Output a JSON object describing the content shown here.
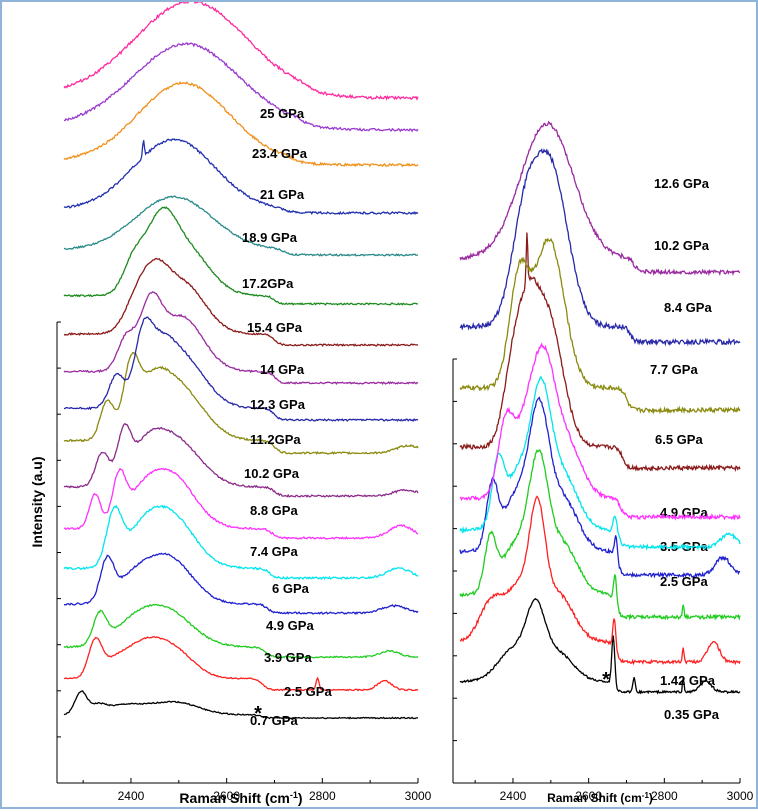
{
  "chart_data": [
    {
      "type": "line",
      "panel": "left",
      "xlabel": "Raman Shift (cm",
      "xlabel_sup": "-1",
      "xlabel_end": ")",
      "ylabel": "Intensity (a.u)",
      "xlim": [
        2260,
        3000
      ],
      "xticks": [
        2400,
        2600,
        2800,
        3000
      ],
      "y_axis_ticks": 10,
      "annotation": "*",
      "series": [
        {
          "name": "0.7 GPa",
          "color": "#000000",
          "peaks": [
            [
              2295,
              0.55,
              12
            ],
            [
              2330,
              0.22,
              18
            ],
            [
              2380,
              0.15,
              30
            ],
            [
              2460,
              0.25,
              60
            ],
            [
              2510,
              0.12,
              40
            ]
          ],
          "edge": 2672,
          "level": 0.08
        },
        {
          "name": "2.5 GPa",
          "color": "#ff2020",
          "peaks": [
            [
              2325,
              0.75,
              14
            ],
            [
              2360,
              0.25,
              25
            ],
            [
              2410,
              0.35,
              35
            ],
            [
              2450,
              0.55,
              45
            ],
            [
              2500,
              0.35,
              40
            ]
          ],
          "edge": 2675,
          "level": 0.25,
          "tail": [
            [
              2790,
              0.25,
              3
            ],
            [
              2930,
              0.2,
              15
            ]
          ]
        },
        {
          "name": "3.9 GPa",
          "color": "#20cc20",
          "peaks": [
            [
              2335,
              0.6,
              14
            ],
            [
              2400,
              0.3,
              40
            ],
            [
              2470,
              0.75,
              55
            ]
          ],
          "edge": 2680,
          "level": 0.2,
          "tail": [
            [
              2940,
              0.12,
              20
            ]
          ]
        },
        {
          "name": "4.9 GPa",
          "color": "#2020d0",
          "peaks": [
            [
              2350,
              0.65,
              14
            ],
            [
              2400,
              0.3,
              35
            ],
            [
              2475,
              0.8,
              50
            ]
          ],
          "edge": 2685,
          "level": 0.15,
          "tail": [
            [
              2950,
              0.12,
              25
            ]
          ]
        },
        {
          "name": "6 GPa",
          "color": "#00e5ee",
          "peaks": [
            [
              2365,
              0.8,
              16
            ],
            [
              2420,
              0.35,
              35
            ],
            [
              2480,
              0.85,
              50
            ]
          ],
          "edge": 2690,
          "level": 0.15,
          "tail": [
            [
              2960,
              0.15,
              25
            ]
          ]
        },
        {
          "name": "7.4 GPa",
          "color": "#ff30ff",
          "peaks": [
            [
              2325,
              0.55,
              12
            ],
            [
              2375,
              0.75,
              14
            ],
            [
              2420,
              0.3,
              30
            ],
            [
              2480,
              0.9,
              50
            ]
          ],
          "edge": 2695,
          "level": 0.15,
          "tail": [
            [
              2965,
              0.2,
              25
            ]
          ]
        },
        {
          "name": "8.8 GPa",
          "color": "#8a2a8a",
          "peaks": [
            [
              2340,
              0.55,
              14
            ],
            [
              2385,
              0.75,
              14
            ],
            [
              2430,
              0.35,
              30
            ],
            [
              2485,
              0.85,
              55
            ]
          ],
          "edge": 2700,
          "level": 0.15,
          "tail": [
            [
              2975,
              0.1,
              25
            ]
          ]
        },
        {
          "name": "10.2 GPa",
          "color": "#8a8a10",
          "peaks": [
            [
              2350,
              0.6,
              14
            ],
            [
              2400,
              0.95,
              16
            ],
            [
              2440,
              0.45,
              30
            ],
            [
              2490,
              0.95,
              55
            ]
          ],
          "edge": 2700,
          "level": 0.2,
          "tail": [
            [
              2980,
              0.12,
              25
            ]
          ]
        },
        {
          "name": "11.2GPa",
          "color": "#2828a8",
          "peaks": [
            [
              2370,
              0.55,
              16
            ],
            [
              2425,
              1.0,
              18
            ],
            [
              2460,
              0.5,
              25
            ],
            [
              2500,
              0.95,
              50
            ]
          ],
          "edge": 2700,
          "level": 0.2
        },
        {
          "name": "12.3 GPa",
          "color": "#9a2aa0",
          "peaks": [
            [
              2390,
              0.55,
              18
            ],
            [
              2440,
              1.0,
              22
            ],
            [
              2505,
              0.95,
              45
            ]
          ],
          "edge": 2700,
          "level": 0.2
        },
        {
          "name": "14 GPa",
          "color": "#8b1a1a",
          "peaks": [
            [
              2410,
              0.5,
              25
            ],
            [
              2450,
              0.85,
              28
            ],
            [
              2510,
              0.9,
              45
            ]
          ],
          "edge": 2700,
          "level": 0.2
        },
        {
          "name": "15.4 GPa",
          "color": "#1e8b1e",
          "peaks": [
            [
              2405,
              0.55,
              22
            ],
            [
              2460,
              1.0,
              30
            ],
            [
              2510,
              0.9,
              50
            ]
          ],
          "edge": 2700,
          "level": 0.15
        },
        {
          "name": "17.2GPa",
          "color": "#2a8a8a",
          "peaks": [
            [
              2490,
              1.0,
              80
            ]
          ],
          "edge": 2720,
          "level": 0.1
        },
        {
          "name": "18.9 GPa",
          "color": "#2030b0",
          "peaks": [
            [
              2490,
              1.0,
              85
            ],
            [
              2426,
              0.25,
              2
            ]
          ],
          "edge": 2720,
          "level": 0.05
        },
        {
          "name": "21 GPa",
          "color": "#f0901a",
          "peaks": [
            [
              2510,
              1.0,
              95
            ]
          ],
          "edge": 2740,
          "level": 0.05
        },
        {
          "name": "23.4 GPa",
          "color": "#9a3ad0",
          "peaks": [
            [
              2515,
              1.0,
              110
            ]
          ],
          "edge": 2760,
          "level": 0.05
        },
        {
          "name": "25 GPa",
          "color": "#ff2aa0",
          "peaks": [
            [
              2525,
              1.0,
              115
            ]
          ],
          "edge": 2770,
          "level": 0.05
        }
      ]
    },
    {
      "type": "line",
      "panel": "right",
      "xlabel": "Raman Shift (cm",
      "xlabel_sup": "-1",
      "xlabel_end": ")",
      "xlim": [
        2260,
        3000
      ],
      "xticks": [
        2400,
        2600,
        2800,
        3000
      ],
      "annotation": "*",
      "series": [
        {
          "name": "0.35 GPa",
          "color": "#000000",
          "peaks": [
            [
              2400,
              0.45,
              40
            ],
            [
              2460,
              0.9,
              25
            ],
            [
              2520,
              0.4,
              40
            ],
            [
              2665,
              0.7,
              4
            ],
            [
              2720,
              0.2,
              3
            ],
            [
              2850,
              0.2,
              2
            ],
            [
              2910,
              0.15,
              15
            ]
          ],
          "edge": 2668,
          "level": 0.15
        },
        {
          "name": "1.42 GPa",
          "color": "#ff2020",
          "peaks": [
            [
              2340,
              0.35,
              30
            ],
            [
              2420,
              0.55,
              40
            ],
            [
              2465,
              0.95,
              20
            ],
            [
              2520,
              0.45,
              40
            ],
            [
              2668,
              0.3,
              4
            ],
            [
              2850,
              0.15,
              2
            ],
            [
              2930,
              0.2,
              15
            ]
          ],
          "edge": 2670,
          "level": 0.2
        },
        {
          "name": "2.5 GPa",
          "color": "#20cc20",
          "peaks": [
            [
              2340,
              0.45,
              15
            ],
            [
              2410,
              0.45,
              40
            ],
            [
              2468,
              1.0,
              25
            ],
            [
              2530,
              0.45,
              40
            ],
            [
              2670,
              0.25,
              4
            ],
            [
              2850,
              0.12,
              2
            ]
          ],
          "edge": 2672,
          "level": 0.2
        },
        {
          "name": "3.5 GPa",
          "color": "#2020d0",
          "peaks": [
            [
              2345,
              0.5,
              15
            ],
            [
              2415,
              0.5,
              40
            ],
            [
              2470,
              0.95,
              25
            ],
            [
              2530,
              0.45,
              40
            ],
            [
              2672,
              0.2,
              4
            ],
            [
              2955,
              0.15,
              20
            ]
          ],
          "edge": 2676,
          "level": 0.2
        },
        {
          "name": "4.9 GPa",
          "color": "#00e5ee",
          "peaks": [
            [
              2360,
              0.5,
              15
            ],
            [
              2420,
              0.55,
              40
            ],
            [
              2475,
              0.95,
              25
            ],
            [
              2530,
              0.5,
              40
            ],
            [
              2670,
              0.15,
              5
            ],
            [
              2970,
              0.12,
              20
            ]
          ],
          "edge": 2680,
          "level": 0.15
        },
        {
          "name": "6.5 GPa",
          "color": "#ff30ff",
          "peaks": [
            [
              2380,
              0.55,
              20
            ],
            [
              2430,
              0.5,
              30
            ],
            [
              2480,
              0.95,
              30
            ],
            [
              2540,
              0.45,
              40
            ]
          ],
          "edge": 2685,
          "level": 0.15
        },
        {
          "name": "7.7 GPa",
          "color": "#8b1a1a",
          "peaks": [
            [
              2400,
              0.55,
              25
            ],
            [
              2440,
              0.6,
              25
            ],
            [
              2490,
              0.95,
              40
            ],
            [
              2437,
              0.35,
              2
            ]
          ],
          "edge": 2690,
          "level": 0.15
        },
        {
          "name": "8.4 GPa",
          "color": "#8a8a10",
          "peaks": [
            [
              2415,
              0.7,
              25
            ],
            [
              2495,
              1.0,
              40
            ]
          ],
          "edge": 2700,
          "level": 0.15
        },
        {
          "name": "10.2 GPa",
          "color": "#2828a8",
          "peaks": [
            [
              2430,
              0.6,
              35
            ],
            [
              2500,
              1.0,
              45
            ]
          ],
          "edge": 2710,
          "level": 0.1
        },
        {
          "name": "12.6 GPa",
          "color": "#9a2aa0",
          "peaks": [
            [
              2490,
              1.0,
              70
            ]
          ],
          "edge": 2720,
          "level": 0.1
        }
      ]
    }
  ]
}
